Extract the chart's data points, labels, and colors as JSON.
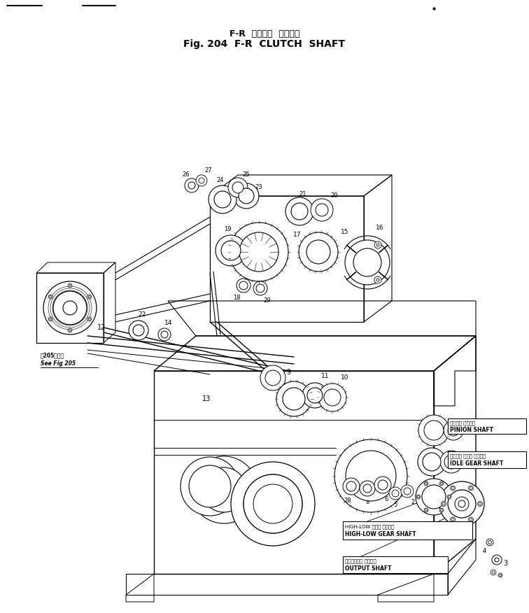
{
  "title_japanese": "F-R  クラッチ  シャフト",
  "title_english": "Fig. 204  F-R  CLUTCH  SHAFT",
  "background_color": "#ffffff",
  "line_color": "#1a1a1a",
  "fig_width": 7.56,
  "fig_height": 8.76,
  "dpi": 100,
  "labels": {
    "pinion_shaft_jp": "ピニオン シャフト",
    "pinion_shaft_en": "PINION SHAFT",
    "idle_gear_shaft_jp": "アイドル ギヤー シャフト",
    "idle_gear_shaft_en": "IDLE GEAR SHAFT",
    "high_low_gear_shaft_jp": "HIGH-LOW ギヤー シャフト",
    "high_low_gear_shaft_en": "HIGH-LOW GEAR SHAFT",
    "output_shaft_jp": "アウトプット シャフト",
    "output_shaft_en": "OUTPUT SHAFT",
    "see_fig_jp": "前205図参考",
    "see_fig_en": "See Fig 205"
  }
}
